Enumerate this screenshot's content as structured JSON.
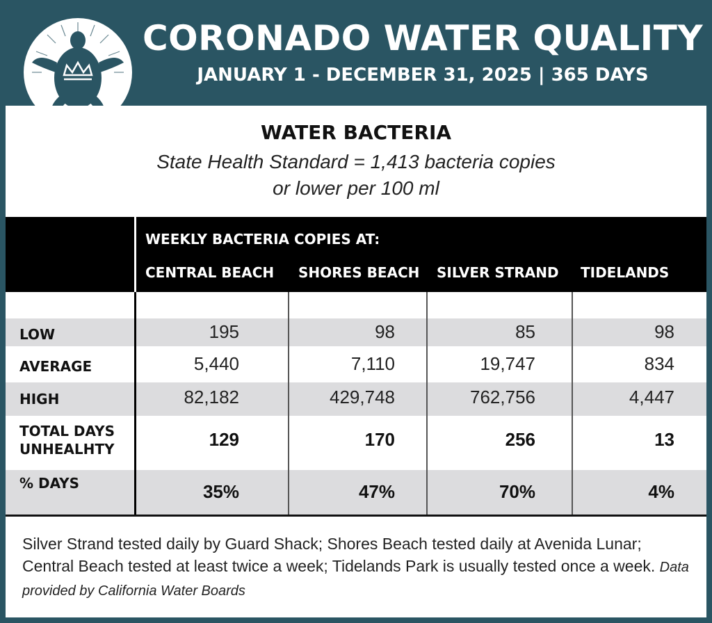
{
  "header": {
    "title": "CORONADO WATER QUALITY",
    "subtitle": "JANUARY 1 - DECEMBER 31, 2025 | 365 DAYS",
    "logo_icon": "turtle-crown-logo-icon"
  },
  "section": {
    "title": "WATER BACTERIA",
    "standard_line1": "State Health Standard  = 1,413 bacteria copies",
    "standard_line2": "or lower per 100 ml"
  },
  "table": {
    "header_label": "WEEKLY BACTERIA COPIES AT:",
    "columns": [
      "CENTRAL BEACH",
      "SHORES BEACH",
      "SILVER STRAND",
      "TIDELANDS"
    ],
    "rows": [
      {
        "label": "LOW",
        "values": [
          "195",
          "98",
          "85",
          "98"
        ]
      },
      {
        "label": "AVERAGE",
        "values": [
          "5,440",
          "7,110",
          "19,747",
          "834"
        ]
      },
      {
        "label": "HIGH",
        "values": [
          "82,182",
          "429,748",
          "762,756",
          "4,447"
        ]
      },
      {
        "label_line1": "TOTAL DAYS",
        "label_line2": "UNHEALHTY",
        "values": [
          "129",
          "170",
          "256",
          "13"
        ]
      },
      {
        "label": "% DAYS",
        "values": [
          "35%",
          "47%",
          "70%",
          "4%"
        ]
      }
    ]
  },
  "footnote": {
    "text": "Silver Strand tested daily by Guard Shack; Shores Beach tested daily at Avenida Lunar; Central Beach tested at least twice a week; Tidelands Park is usually tested once a week.",
    "credit": "Data provided by California Water Boards"
  },
  "colors": {
    "banner": "#2a5563",
    "header_band": "#000000",
    "row_gray": "#dcdcde"
  }
}
